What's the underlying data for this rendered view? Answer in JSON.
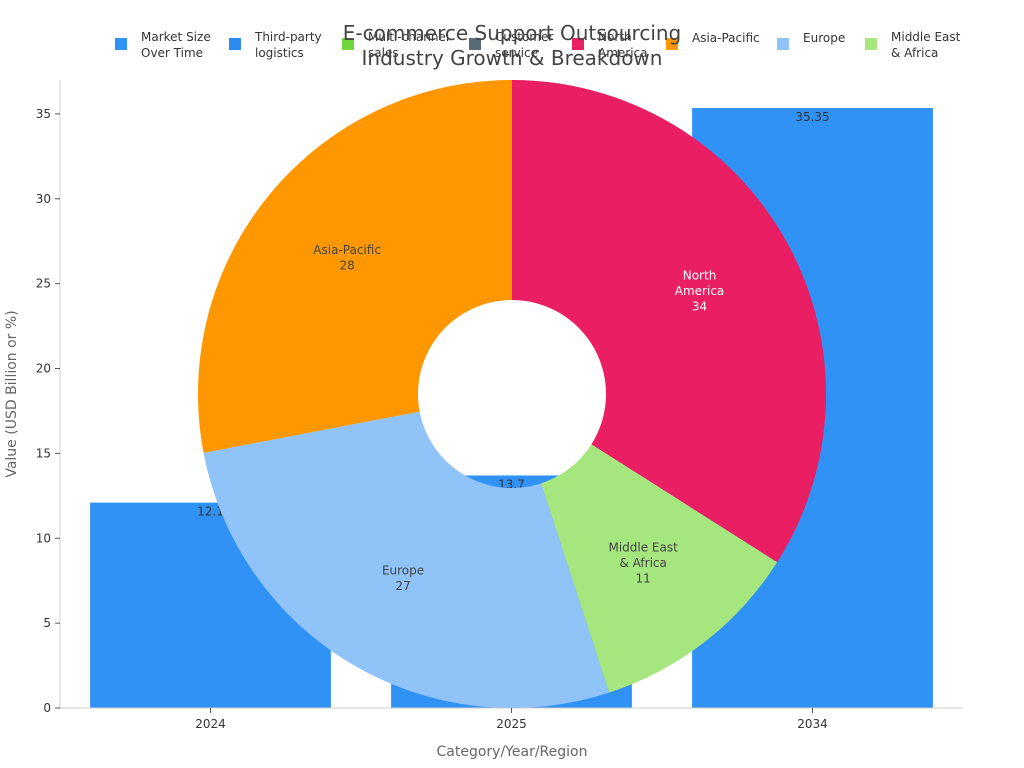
{
  "chart_data": {
    "type": "bar",
    "title": [
      "E-commerce Support Outsourcing",
      "Industry Growth & Breakdown"
    ],
    "xlabel": "Category/Year/Region",
    "ylabel": "Value (USD Billion or %)",
    "ylim": [
      0,
      37
    ],
    "yticks": [
      "0",
      "5",
      "10",
      "15",
      "20",
      "25",
      "30",
      "35"
    ],
    "grid": false,
    "legend_position": "top",
    "bar_series": {
      "name": [
        "Market Size",
        "Over Time"
      ],
      "color": "#3192f5",
      "categories": [
        "2024",
        "2025",
        "2034"
      ],
      "values": [
        12.1,
        13.7,
        35.35
      ],
      "value_labels": [
        "12.1",
        "13.7",
        "35.35"
      ]
    },
    "legend": [
      {
        "label": [
          "Market Size",
          "Over Time"
        ],
        "color": "#3192f5"
      },
      {
        "label": [
          "Third-party",
          "logistics"
        ],
        "color": "#2e8bef"
      },
      {
        "label": [
          "Multi-channel",
          "sales"
        ],
        "color": "#6fd63b"
      },
      {
        "label": [
          "Customer",
          "service"
        ],
        "color": "#5a6b78"
      },
      {
        "label": [
          "North",
          "America"
        ],
        "color": "#e91e63"
      },
      {
        "label": [
          "Asia-Pacific"
        ],
        "color": "#ff9800"
      },
      {
        "label": [
          "Europe"
        ],
        "color": "#90c4f9"
      },
      {
        "label": [
          "Middle East",
          "& Africa"
        ],
        "color": "#a5e67f"
      }
    ],
    "donut": {
      "type": "pie",
      "start_angle_deg": 0,
      "slices": [
        {
          "label": [
            "North",
            "America"
          ],
          "value": 34,
          "value_label": "34",
          "color": "#e91e63",
          "text_color": "#ffffff"
        },
        {
          "label": [
            "Middle East",
            "& Africa"
          ],
          "value": 11,
          "value_label": "11",
          "color": "#a5e67f",
          "text_color": "#444444"
        },
        {
          "label": [
            "Europe"
          ],
          "value": 27,
          "value_label": "27",
          "color": "#90c4f9",
          "text_color": "#444444"
        },
        {
          "label": [
            "Asia-Pacific"
          ],
          "value": 28,
          "value_label": "28",
          "color": "#ff9800",
          "text_color": "#444444"
        }
      ]
    }
  }
}
